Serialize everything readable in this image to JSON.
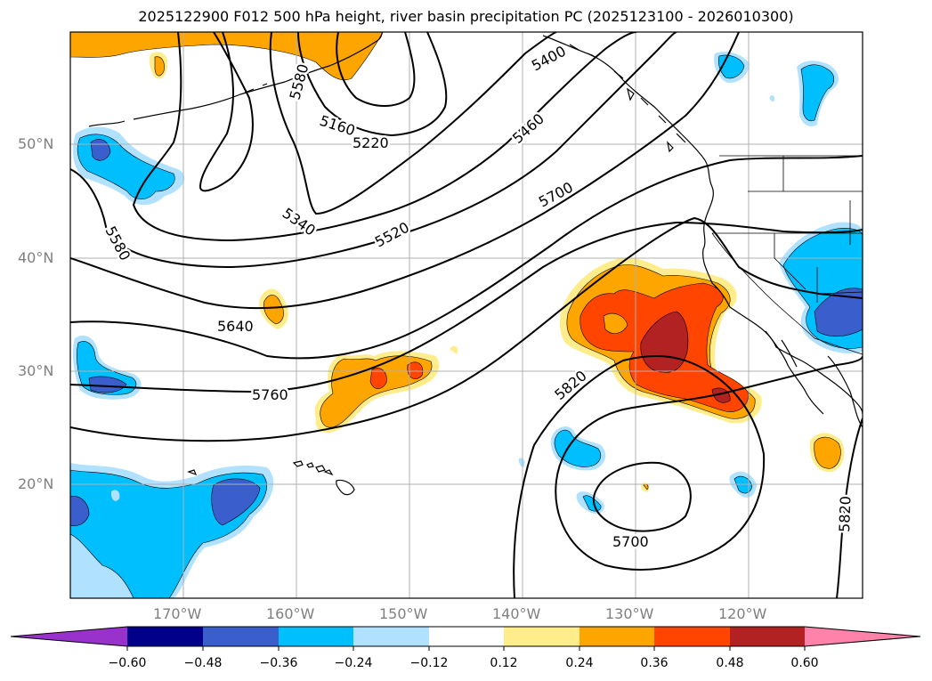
{
  "title": "2025122900 F012 500 hPa height, river basin precipitation PC (2025123100 - 2026010300)",
  "map": {
    "lat_labels": [
      "50°N",
      "40°N",
      "30°N",
      "20°N"
    ],
    "lon_labels": [
      "170°W",
      "160°W",
      "150°W",
      "140°W",
      "130°W",
      "120°W"
    ],
    "contour_labels": [
      "5580",
      "5160",
      "5220",
      "5400",
      "5460",
      "5580",
      "5340",
      "5520",
      "5700",
      "5640",
      "5760",
      "5820",
      "5700",
      "5820"
    ]
  },
  "colorbar": {
    "ticks": [
      "−0.60",
      "−0.48",
      "−0.36",
      "−0.24",
      "−0.12",
      "0.12",
      "0.24",
      "0.36",
      "0.48",
      "0.60"
    ],
    "colors": {
      "under": "#9932cc",
      "neg060": "#00008b",
      "neg048": "#3a5fcd",
      "neg036": "#00bfff",
      "neg024": "#b0e2ff",
      "neutral": "#ffffff",
      "pos012": "#ffec8b",
      "pos024": "#ffa500",
      "pos036": "#ff4500",
      "pos048": "#b22222",
      "over": "#ff82ab"
    }
  }
}
